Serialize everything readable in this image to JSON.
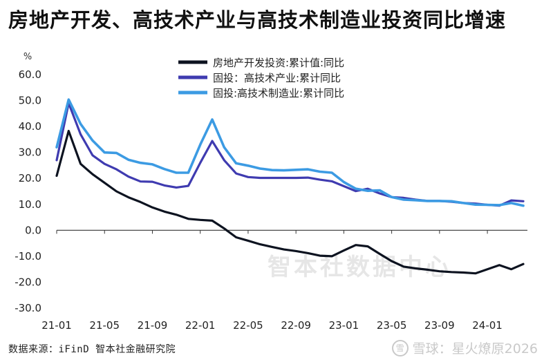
{
  "chart_data": {
    "type": "line",
    "title": "房地产开发、高技术产业与高技术制造业投资同比增速",
    "ylabel": "%",
    "xlabel": "",
    "ylim": [
      -30,
      60
    ],
    "yticks": [
      60,
      50,
      40,
      30,
      20,
      10,
      0,
      -10,
      -20,
      -30
    ],
    "ytick_labels": [
      "60.0",
      "50.0",
      "40.0",
      "30.0",
      "20.0",
      "10.0",
      "0.0",
      "-10.0",
      "-20.0",
      "-30.0"
    ],
    "x": [
      "21-01",
      "21-02",
      "21-03",
      "21-04",
      "21-05",
      "21-06",
      "21-07",
      "21-08",
      "21-09",
      "21-10",
      "21-11",
      "21-12",
      "22-01",
      "22-02",
      "22-03",
      "22-04",
      "22-05",
      "22-06",
      "22-07",
      "22-08",
      "22-09",
      "22-10",
      "22-11",
      "22-12",
      "23-01",
      "23-02",
      "23-03",
      "23-04",
      "23-05",
      "23-06",
      "23-07",
      "23-08",
      "23-09",
      "23-10",
      "23-11",
      "23-12",
      "24-01",
      "24-02",
      "24-03",
      "24-04"
    ],
    "xtick_labels": [
      "21-01",
      "21-05",
      "21-09",
      "22-01",
      "22-05",
      "22-09",
      "23-01",
      "23-05",
      "23-09",
      "24-01"
    ],
    "legend_position": "top",
    "series": [
      {
        "name": "房地产开发投资:累计值:同比",
        "color": "#0d1320",
        "values": [
          21.0,
          38.3,
          25.6,
          21.6,
          18.3,
          15.0,
          12.7,
          10.9,
          8.8,
          7.2,
          6.0,
          4.4,
          4.0,
          3.7,
          0.7,
          -2.7,
          -4.0,
          -5.4,
          -6.4,
          -7.4,
          -8.0,
          -8.8,
          -9.8,
          -10.0,
          -7.8,
          -5.7,
          -6.2,
          -9.1,
          -11.9,
          -14.0,
          -14.7,
          -15.2,
          -15.8,
          -16.1,
          -16.3,
          -16.6,
          -15.0,
          -13.4,
          -15.0,
          -13.0
        ]
      },
      {
        "name": "固投：高技术产业:累计同比",
        "color": "#3f3bb0",
        "values": [
          27.0,
          49.0,
          37.0,
          28.9,
          25.6,
          23.5,
          20.7,
          18.8,
          18.7,
          17.3,
          16.5,
          17.1,
          26.0,
          34.4,
          27.0,
          21.9,
          20.5,
          20.2,
          20.2,
          20.2,
          20.2,
          20.3,
          19.5,
          18.9,
          17.0,
          15.1,
          16.0,
          14.2,
          12.8,
          12.5,
          11.8,
          11.3,
          11.3,
          11.0,
          10.5,
          10.3,
          9.8,
          9.5,
          11.5,
          11.2
        ]
      },
      {
        "name": "固投:高技术制造业:累计同比",
        "color": "#3c9be3",
        "values": [
          32.0,
          50.4,
          41.0,
          34.6,
          30.0,
          29.8,
          27.2,
          26.0,
          25.4,
          23.6,
          22.2,
          22.2,
          33.0,
          42.7,
          32.0,
          25.8,
          24.9,
          23.8,
          23.2,
          23.1,
          23.3,
          23.5,
          22.6,
          22.2,
          18.6,
          16.0,
          15.2,
          15.4,
          12.8,
          11.8,
          11.6,
          11.3,
          11.3,
          11.2,
          10.5,
          9.9,
          9.8,
          9.7,
          10.5,
          9.5
        ]
      }
    ],
    "watermark": "智本社数据中心"
  },
  "footer": {
    "source": "数据来源：iFinD 智本社金融研究院",
    "brand": "雪球：星火燎原2026",
    "brand_logo": "雪"
  }
}
